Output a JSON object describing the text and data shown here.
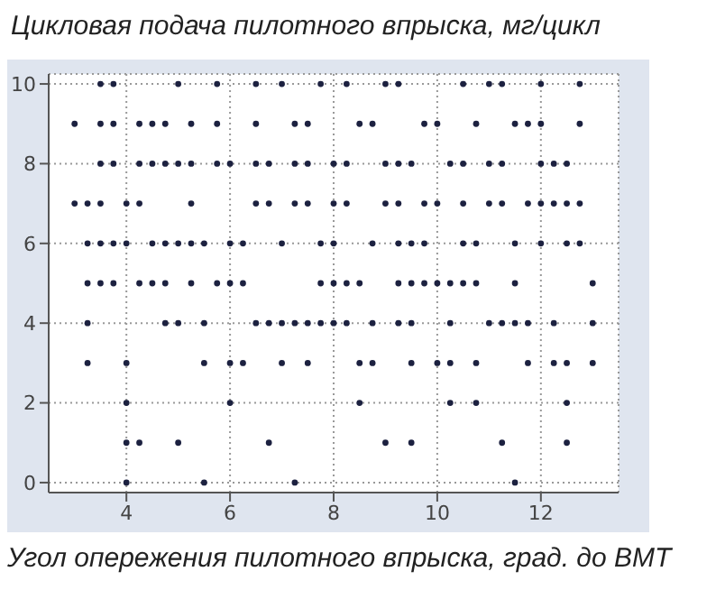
{
  "chart_data": {
    "type": "scatter",
    "title": "Цикловая подача пилотного впрыска, мг/цикл",
    "xlabel": "Угол опережения пилотного впрыска, град. до ВМТ",
    "x": [
      3.5,
      3.75,
      5,
      5.75,
      6.5,
      7,
      7.75,
      8.25,
      9,
      9.25,
      10.5,
      11,
      11.25,
      12,
      12.75,
      3,
      3.5,
      3.75,
      4.25,
      4.5,
      4.75,
      5.25,
      5.75,
      6.5,
      7.25,
      7.5,
      8.5,
      8.75,
      9.75,
      10,
      10.75,
      11.5,
      11.75,
      12,
      12.75,
      3.5,
      3.75,
      4.25,
      4.5,
      4.75,
      5,
      5.25,
      5.75,
      6,
      6.5,
      6.75,
      7.25,
      7.5,
      8,
      8.25,
      9,
      9.25,
      9.5,
      10.25,
      10.5,
      11,
      11.25,
      12,
      12.25,
      12.5,
      3,
      3.25,
      3.5,
      4,
      4.25,
      5.25,
      6.5,
      6.75,
      7.25,
      7.5,
      8,
      8.25,
      9,
      9.25,
      9.75,
      10,
      10.5,
      11,
      11.25,
      11.75,
      12,
      12.25,
      12.5,
      12.75,
      3.25,
      3.5,
      3.75,
      4,
      4.5,
      4.75,
      5,
      5.25,
      5.5,
      6,
      6.25,
      7,
      7.75,
      8,
      8.75,
      9.25,
      9.5,
      9.75,
      10.5,
      10.75,
      11.5,
      12,
      12.5,
      12.75,
      3.25,
      3.5,
      3.75,
      4.25,
      4.5,
      4.75,
      5.25,
      5.75,
      6,
      6.25,
      7.75,
      8,
      8.25,
      8.5,
      9.25,
      9.5,
      9.75,
      10,
      10.25,
      10.5,
      10.75,
      11.5,
      13,
      3.25,
      4.75,
      5,
      5.5,
      6.5,
      6.75,
      7,
      7.25,
      7.5,
      7.75,
      8,
      8.25,
      8.75,
      9.25,
      9.5,
      10.25,
      11,
      11.25,
      11.5,
      11.75,
      12.25,
      13,
      3.25,
      4,
      5.5,
      6,
      6.25,
      7,
      7.5,
      8.5,
      8.75,
      9.5,
      10,
      10.25,
      10.75,
      11.75,
      12.25,
      12.5,
      13,
      4,
      6,
      8.5,
      10.25,
      10.75,
      12.5,
      4,
      4.25,
      5,
      6.75,
      9,
      9.5,
      11.25,
      12.5,
      4,
      5.5,
      7.25,
      11.5
    ],
    "values": [
      10,
      10,
      10,
      10,
      10,
      10,
      10,
      10,
      10,
      10,
      10,
      10,
      10,
      10,
      10,
      9,
      9,
      9,
      9,
      9,
      9,
      9,
      9,
      9,
      9,
      9,
      9,
      9,
      9,
      9,
      9,
      9,
      9,
      9,
      9,
      8,
      8,
      8,
      8,
      8,
      8,
      8,
      8,
      8,
      8,
      8,
      8,
      8,
      8,
      8,
      8,
      8,
      8,
      8,
      8,
      8,
      8,
      8,
      8,
      8,
      7,
      7,
      7,
      7,
      7,
      7,
      7,
      7,
      7,
      7,
      7,
      7,
      7,
      7,
      7,
      7,
      7,
      7,
      7,
      7,
      7,
      7,
      7,
      7,
      6,
      6,
      6,
      6,
      6,
      6,
      6,
      6,
      6,
      6,
      6,
      6,
      6,
      6,
      6,
      6,
      6,
      6,
      6,
      6,
      6,
      6,
      6,
      6,
      5,
      5,
      5,
      5,
      5,
      5,
      5,
      5,
      5,
      5,
      5,
      5,
      5,
      5,
      5,
      5,
      5,
      5,
      5,
      5,
      5,
      5,
      5,
      4,
      4,
      4,
      4,
      4,
      4,
      4,
      4,
      4,
      4,
      4,
      4,
      4,
      4,
      4,
      4,
      4,
      4,
      4,
      4,
      4,
      4,
      3,
      3,
      3,
      3,
      3,
      3,
      3,
      3,
      3,
      3,
      3,
      3,
      3,
      3,
      3,
      3,
      3,
      2,
      2,
      2,
      2,
      2,
      2,
      1,
      1,
      1,
      1,
      1,
      1,
      1,
      1,
      0,
      0,
      0,
      0
    ],
    "color": "#1c2140",
    "marker": "circle",
    "grid": true,
    "xlim": [
      2.5,
      13.5
    ],
    "xticks": [
      4,
      6,
      8,
      10,
      12
    ],
    "ylim": [
      -0.25,
      10.25
    ],
    "yticks": [
      0,
      2,
      4,
      6,
      8,
      10
    ]
  }
}
